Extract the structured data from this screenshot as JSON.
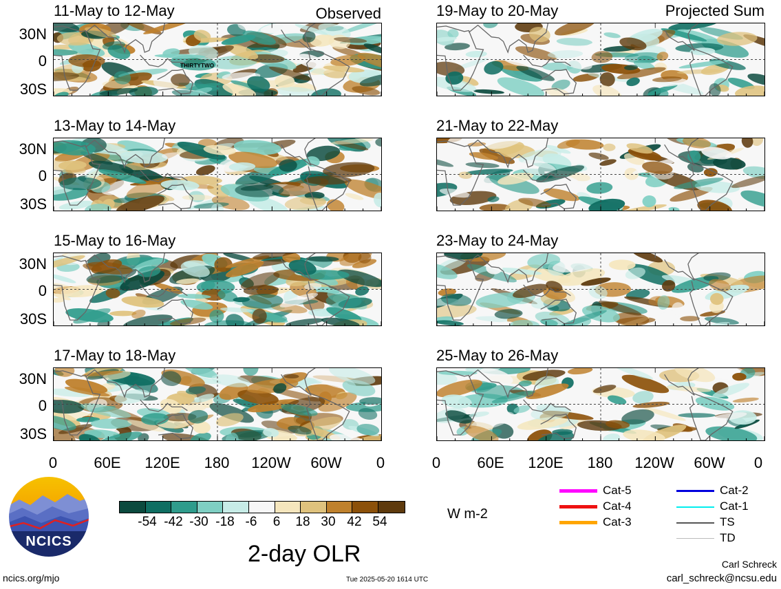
{
  "panels_observed": [
    {
      "title": "11-May to 12-May",
      "tag": "Observed"
    },
    {
      "title": "13-May to 14-May",
      "tag": ""
    },
    {
      "title": "15-May to 16-May",
      "tag": ""
    },
    {
      "title": "17-May to 18-May",
      "tag": ""
    }
  ],
  "panels_projected": [
    {
      "title": "19-May to 20-May",
      "tag": "Projected Sum"
    },
    {
      "title": "21-May to 22-May",
      "tag": ""
    },
    {
      "title": "23-May to 24-May",
      "tag": ""
    },
    {
      "title": "25-May to 26-May",
      "tag": ""
    }
  ],
  "storm_label": "THIRTYTWO",
  "lat_labels": [
    "30N",
    "0",
    "30S"
  ],
  "lon_labels": [
    "0",
    "60E",
    "120E",
    "180",
    "120W",
    "60W",
    "0"
  ],
  "colorbar": {
    "colors": [
      "#0b4a3e",
      "#0f6e62",
      "#2f9c8c",
      "#7fcfc3",
      "#c7ece7",
      "#f7f7f7",
      "#f5e6bd",
      "#dfc27d",
      "#bf812d",
      "#8c510a",
      "#5e3a0d"
    ],
    "ticks": [
      "-54",
      "-42",
      "-30",
      "-18",
      "-6",
      "6",
      "18",
      "30",
      "42",
      "54"
    ],
    "units": "W m-2"
  },
  "main_title": "2-day OLR",
  "legend": [
    {
      "label": "Cat-5",
      "color": "#ff00ff"
    },
    {
      "label": "Cat-4",
      "color": "#ee1111"
    },
    {
      "label": "Cat-3",
      "color": "#ffa500"
    },
    {
      "label": "Cat-2",
      "color": "#0000dd"
    },
    {
      "label": "Cat-1",
      "color": "#00eeee"
    },
    {
      "label": "TS",
      "color": "#555555"
    },
    {
      "label": "TD",
      "color": "#bbbbbb"
    }
  ],
  "logo_text": "NCICS",
  "footer": {
    "url": "ncics.org/mjo",
    "timestamp": "Tue 2025-05-20 1614 UTC",
    "author": "Carl Schreck",
    "email": "carl_schreck@ncsu.edu"
  }
}
